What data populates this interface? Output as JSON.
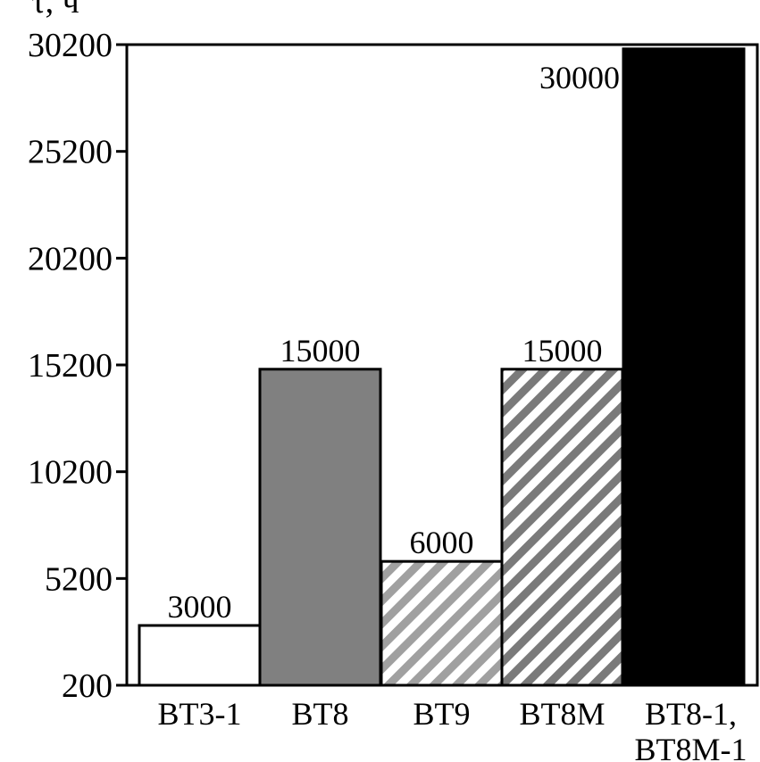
{
  "chart_data": {
    "type": "bar",
    "ylabel": "τ, ч",
    "ylim": [
      200,
      30200
    ],
    "yticks": [
      200,
      5200,
      10200,
      15200,
      20200,
      25200,
      30200
    ],
    "grid": false,
    "bars": [
      {
        "category": [
          "BT3-1"
        ],
        "value": 3000,
        "label": "3000",
        "fill": "white"
      },
      {
        "category": [
          "BT8"
        ],
        "value": 15000,
        "label": "15000",
        "fill": "gray"
      },
      {
        "category": [
          "BT9"
        ],
        "value": 6000,
        "label": "6000",
        "fill": "hatch-gray"
      },
      {
        "category": [
          "BT8M"
        ],
        "value": 15000,
        "label": "15000",
        "fill": "hatch-dark"
      },
      {
        "category": [
          "BT8-1,",
          "BT8M-1"
        ],
        "value": 30000,
        "label": "30000",
        "fill": "black"
      }
    ],
    "colors": {
      "gray": "#808080",
      "hatch_light": "#a0a0a0",
      "hatch_dark": "#7a7a7a",
      "black": "#000000"
    }
  }
}
